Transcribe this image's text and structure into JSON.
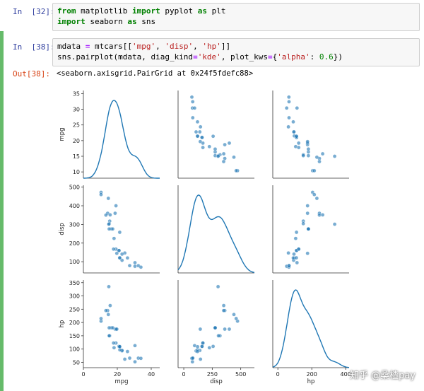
{
  "cells": {
    "cell1": {
      "prompt": "In  [32]:",
      "line1": {
        "kw1": "from",
        "mod": " matplotlib ",
        "kw2": "import",
        "name": " pyplot ",
        "kw3": "as",
        "alias": " plt"
      },
      "line2": {
        "kw1": "import",
        "mod": " seaborn ",
        "kw2": "as",
        "alias": " sns"
      }
    },
    "cell2": {
      "prompt": "In  [38]:",
      "line1": {
        "a": "mdata ",
        "eq": "=",
        "b": " mtcars[[",
        "s1": "'mpg'",
        "c1": ", ",
        "s2": "'disp'",
        "c2": ", ",
        "s3": "'hp'",
        "end": "]]"
      },
      "line2": {
        "a": "sns.pairplot(mdata, diag_kind",
        "eq1": "=",
        "s1": "'kde'",
        "b": ", plot_kws",
        "eq2": "=",
        "c": "{",
        "s2": "'alpha'",
        "d": ": ",
        "n": "0.6",
        "e": "})"
      }
    },
    "output": {
      "prompt": "Out[38]:",
      "text": "<seaborn.axisgrid.PairGrid at 0x24f5fdefc88>"
    }
  },
  "watermark": "知乎 @桑楂pay",
  "chart_data": {
    "type": "scatter",
    "variables": [
      "mpg",
      "disp",
      "hp"
    ],
    "mtcars": {
      "mpg": [
        21.0,
        21.0,
        22.8,
        21.4,
        18.7,
        18.1,
        14.3,
        24.4,
        22.8,
        19.2,
        17.8,
        16.4,
        17.3,
        15.2,
        10.4,
        10.4,
        14.7,
        32.4,
        30.4,
        33.9,
        21.5,
        15.5,
        15.2,
        13.3,
        19.2,
        27.3,
        26.0,
        30.4,
        15.8,
        19.7,
        15.0,
        21.4
      ],
      "disp": [
        160,
        160,
        108,
        258,
        360,
        225,
        360,
        146.7,
        140.8,
        167.6,
        167.6,
        275.8,
        275.8,
        275.8,
        472,
        460,
        440,
        78.7,
        75.7,
        71.1,
        120.1,
        318,
        304,
        350,
        400,
        79,
        120.3,
        95.1,
        351,
        145,
        301,
        121
      ],
      "hp": [
        110,
        110,
        93,
        110,
        175,
        105,
        245,
        62,
        95,
        123,
        123,
        180,
        180,
        180,
        205,
        215,
        230,
        66,
        52,
        65,
        97,
        150,
        150,
        245,
        175,
        66,
        91,
        113,
        264,
        175,
        335,
        109
      ]
    },
    "axes": {
      "mpg": {
        "lim": [
          8,
          36
        ],
        "ticks": [
          10,
          15,
          20,
          25,
          30,
          35
        ],
        "xlim": [
          0,
          45
        ],
        "xticks": [
          0,
          20,
          40
        ]
      },
      "disp": {
        "lim": [
          40,
          510
        ],
        "ticks": [
          100,
          200,
          300,
          400,
          500
        ],
        "xlim": [
          -50,
          620
        ],
        "xticks": [
          0,
          250,
          500
        ]
      },
      "hp": {
        "lim": [
          30,
          360
        ],
        "ticks": [
          50,
          100,
          150,
          200,
          250,
          300,
          350
        ],
        "xlim": [
          -30,
          420
        ],
        "xticks": [
          0,
          200,
          400
        ]
      }
    },
    "diag_kind": "kde",
    "alpha": 0.6,
    "color": "#1f77b4"
  }
}
